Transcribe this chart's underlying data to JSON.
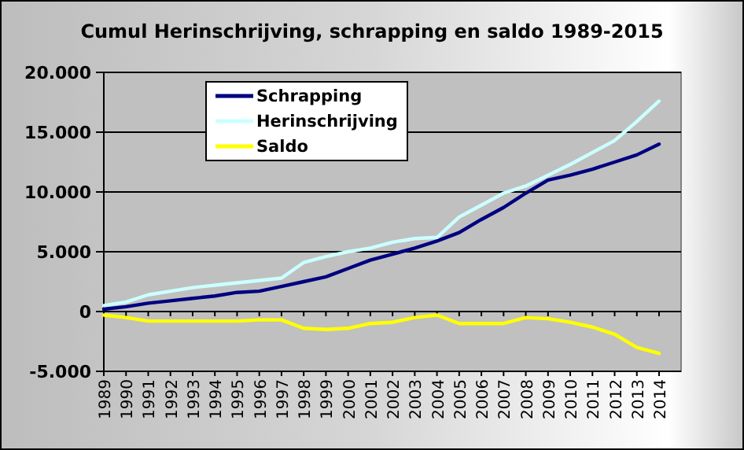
{
  "chart_data": {
    "type": "line",
    "title": "Cumul Herinschrijving, schrapping en saldo 1989-2015",
    "categories": [
      "1989",
      "1990",
      "1991",
      "1992",
      "1993",
      "1994",
      "1995",
      "1996",
      "1997",
      "1998",
      "1999",
      "2000",
      "2001",
      "2002",
      "2003",
      "2004",
      "2005",
      "2006",
      "2007",
      "2008",
      "2009",
      "2010",
      "2011",
      "2012",
      "2013",
      "2014"
    ],
    "series": [
      {
        "name": "Schrapping",
        "color": "#000080",
        "values": [
          200,
          400,
          700,
          900,
          1100,
          1300,
          1600,
          1700,
          2100,
          2500,
          2900,
          3600,
          4300,
          4800,
          5300,
          5900,
          6600,
          7700,
          8700,
          9900,
          11000,
          11400,
          11900,
          12500,
          13100,
          14000
        ]
      },
      {
        "name": "Herinschrijving",
        "color": "#ccffff",
        "values": [
          500,
          800,
          1400,
          1700,
          2000,
          2200,
          2400,
          2600,
          2800,
          4100,
          4600,
          5000,
          5300,
          5800,
          6100,
          6200,
          7900,
          8900,
          9900,
          10500,
          11400,
          12300,
          13300,
          14300,
          15900,
          17600
        ]
      },
      {
        "name": "Saldo",
        "color": "#ffff00",
        "values": [
          -300,
          -500,
          -800,
          -800,
          -800,
          -800,
          -800,
          -700,
          -700,
          -1400,
          -1500,
          -1400,
          -1000,
          -900,
          -500,
          -300,
          -1000,
          -1000,
          -1000,
          -500,
          -600,
          -900,
          -1300,
          -1900,
          -3000,
          -3500
        ]
      }
    ],
    "ylim": [
      -5000,
      20000
    ],
    "yticks": [
      {
        "value": -5000,
        "label": "-5.000"
      },
      0,
      {
        "value": 5000,
        "label": "5.000"
      },
      {
        "value": 10000,
        "label": "10.000"
      },
      {
        "value": 15000,
        "label": "15.000"
      },
      {
        "value": 20000,
        "label": "20.000"
      }
    ],
    "grid": "y",
    "legend": "top left"
  }
}
